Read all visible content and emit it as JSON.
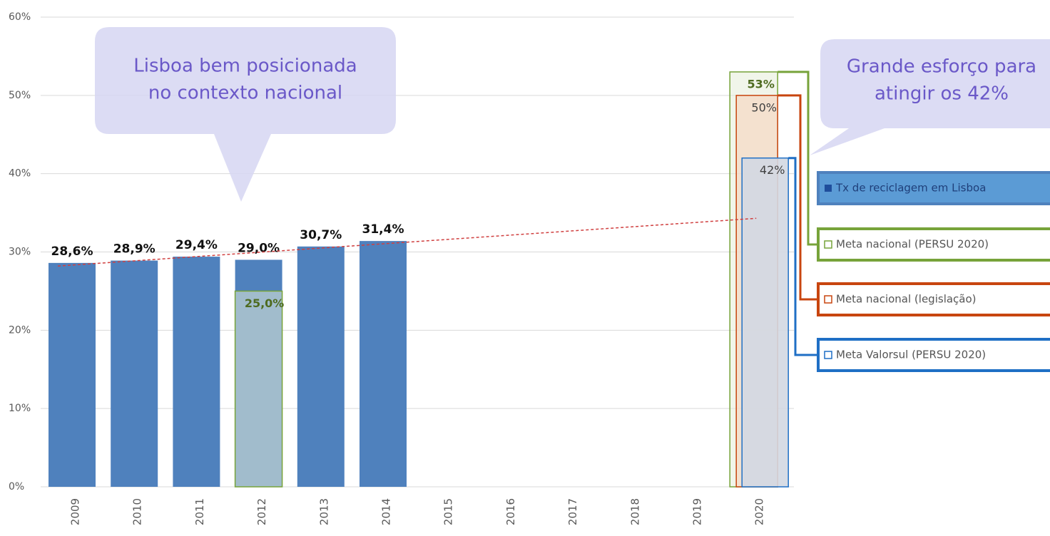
{
  "chart_data": {
    "type": "bar",
    "categories": [
      "2009",
      "2010",
      "2011",
      "2012",
      "2013",
      "2014",
      "2015",
      "2016",
      "2017",
      "2018",
      "2019",
      "2020"
    ],
    "series": [
      {
        "name": "Tx de reciclagem em Lisboa",
        "color": "#4f81bd",
        "values": [
          28.6,
          28.9,
          29.4,
          29.0,
          30.7,
          31.4,
          null,
          null,
          null,
          null,
          null,
          null
        ],
        "value_labels": [
          "28,6%",
          "28,9%",
          "29,4%",
          "29,0%",
          "30,7%",
          "31,4%",
          null,
          null,
          null,
          null,
          null,
          null
        ]
      },
      {
        "name": "Meta nacional (PERSU 2020)",
        "color": "#77a33a",
        "values": [
          null,
          null,
          null,
          25.0,
          null,
          null,
          null,
          null,
          null,
          null,
          null,
          53
        ],
        "value_labels": [
          null,
          null,
          null,
          "25,0%",
          null,
          null,
          null,
          null,
          null,
          null,
          null,
          "53%"
        ]
      },
      {
        "name": "Meta nacional (legislação)",
        "color": "#c8450f",
        "values": [
          null,
          null,
          null,
          null,
          null,
          null,
          null,
          null,
          null,
          null,
          null,
          50
        ],
        "value_labels": [
          null,
          null,
          null,
          null,
          null,
          null,
          null,
          null,
          null,
          null,
          null,
          "50%"
        ]
      },
      {
        "name": "Meta Valorsul (PERSU 2020)",
        "color": "#1f6fc5",
        "values": [
          null,
          null,
          null,
          null,
          null,
          null,
          null,
          null,
          null,
          null,
          null,
          42
        ],
        "value_labels": [
          null,
          null,
          null,
          null,
          null,
          null,
          null,
          null,
          null,
          null,
          null,
          "42%"
        ]
      }
    ],
    "trendline": {
      "color": "#d04040",
      "from": 28.2,
      "to": 34.3
    },
    "ylim": [
      0,
      60
    ],
    "yticks": [
      {
        "value": 0,
        "label": "0%"
      },
      {
        "value": 10,
        "label": "10%"
      },
      {
        "value": 20,
        "label": "20%"
      },
      {
        "value": 30,
        "label": "30%"
      },
      {
        "value": 40,
        "label": "40%"
      },
      {
        "value": 50,
        "label": "50%"
      },
      {
        "value": 60,
        "label": "60%"
      }
    ],
    "grid": true,
    "legend": "right",
    "annotations": [
      {
        "lines": [
          "Lisboa bem posicionada",
          "no contexto nacional"
        ]
      },
      {
        "lines": [
          "Grande esforço para",
          "atingir os 42%"
        ]
      }
    ]
  }
}
